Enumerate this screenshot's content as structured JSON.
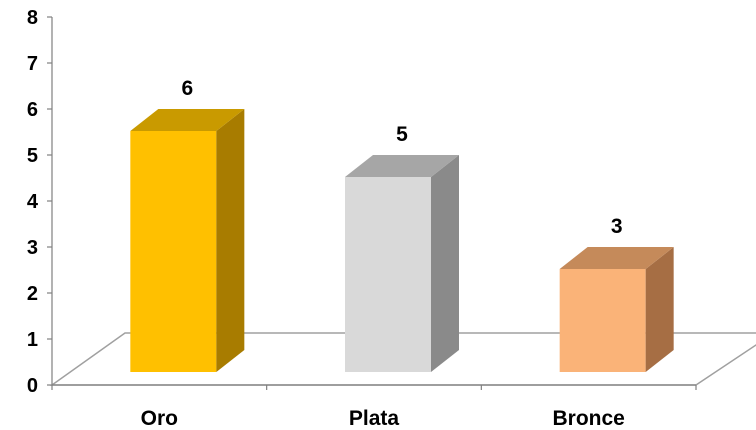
{
  "chart_data": {
    "type": "bar",
    "categories": [
      "Oro",
      "Plata",
      "Bronce"
    ],
    "values": [
      6,
      5,
      3
    ],
    "data_labels": [
      "6",
      "5",
      "3"
    ],
    "ylim": [
      0,
      8
    ],
    "yticks": [
      0,
      1,
      2,
      3,
      4,
      5,
      6,
      7,
      8
    ],
    "ytick_labels": [
      "0",
      "1",
      "2",
      "3",
      "4",
      "5",
      "6",
      "7",
      "8"
    ],
    "grid": false,
    "style": "3d",
    "colors": {
      "front": [
        "#FFC000",
        "#D9D9D9",
        "#FAB378"
      ],
      "side": [
        "#A87C00",
        "#8A8A8A",
        "#A66E44"
      ],
      "top": [
        "#C99A00",
        "#A6A6A6",
        "#C58A5A"
      ],
      "floor_line": "#A0A0A0",
      "axis": "#808080"
    }
  }
}
